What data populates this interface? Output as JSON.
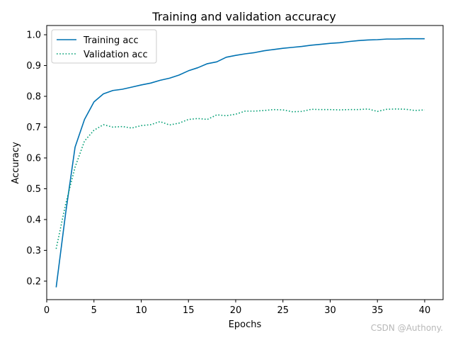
{
  "chart_data": {
    "type": "line",
    "title": "Training and validation accuracy",
    "xlabel": "Epochs",
    "ylabel": "Accuracy",
    "xlim": [
      0,
      41.95
    ],
    "ylim": [
      0.14,
      1.03
    ],
    "xticks": [
      0,
      5,
      10,
      15,
      20,
      25,
      30,
      35,
      40
    ],
    "yticks": [
      0.2,
      0.3,
      0.4,
      0.5,
      0.6,
      0.7,
      0.8,
      0.9,
      1.0
    ],
    "legend_position": "top-left",
    "x": [
      1,
      2,
      3,
      4,
      5,
      6,
      7,
      8,
      9,
      10,
      11,
      12,
      13,
      14,
      15,
      16,
      17,
      18,
      19,
      20,
      21,
      22,
      23,
      24,
      25,
      26,
      27,
      28,
      29,
      30,
      31,
      32,
      33,
      34,
      35,
      36,
      37,
      38,
      39,
      40
    ],
    "series": [
      {
        "name": "Training acc",
        "color": "#0072b2",
        "style": "solid",
        "values": [
          0.18,
          0.42,
          0.635,
          0.725,
          0.782,
          0.808,
          0.819,
          0.823,
          0.83,
          0.837,
          0.843,
          0.852,
          0.859,
          0.869,
          0.883,
          0.893,
          0.906,
          0.912,
          0.927,
          0.933,
          0.938,
          0.942,
          0.948,
          0.952,
          0.956,
          0.959,
          0.962,
          0.966,
          0.969,
          0.972,
          0.974,
          0.978,
          0.981,
          0.983,
          0.984,
          0.986,
          0.986,
          0.987,
          0.987,
          0.987
        ]
      },
      {
        "name": "Validation acc",
        "color": "#009e73",
        "style": "dotted",
        "values": [
          0.305,
          0.45,
          0.57,
          0.655,
          0.69,
          0.708,
          0.7,
          0.702,
          0.697,
          0.705,
          0.708,
          0.718,
          0.707,
          0.713,
          0.725,
          0.728,
          0.725,
          0.74,
          0.737,
          0.742,
          0.752,
          0.752,
          0.754,
          0.757,
          0.756,
          0.75,
          0.751,
          0.758,
          0.757,
          0.757,
          0.756,
          0.757,
          0.757,
          0.759,
          0.751,
          0.758,
          0.759,
          0.758,
          0.754,
          0.756
        ]
      }
    ]
  },
  "watermark": "CSDN @Authony."
}
